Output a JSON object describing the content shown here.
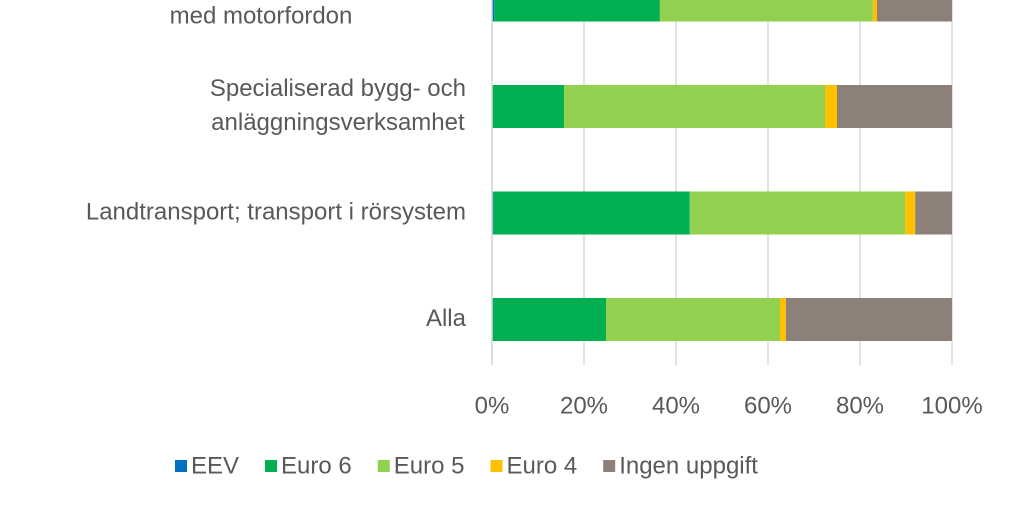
{
  "chart_data": {
    "type": "stacked-barh",
    "categories": [
      [
        "med motorfordon"
      ],
      [
        "Specialiserad bygg- och",
        "anläggningsverksamhet"
      ],
      [
        "Landtransport; transport i rörsystem"
      ],
      [
        "Alla"
      ]
    ],
    "series": [
      {
        "name": "EEV",
        "color": "#0070c0",
        "values": [
          0.5,
          0,
          0.3,
          0.2
        ]
      },
      {
        "name": "Euro 6",
        "color": "#00b050",
        "values": [
          36,
          15.7,
          42.7,
          24.6
        ]
      },
      {
        "name": "Euro 5",
        "color": "#92d050",
        "values": [
          46.3,
          56.7,
          46.8,
          37.8
        ]
      },
      {
        "name": "Euro 4",
        "color": "#ffc000",
        "values": [
          0.9,
          2.6,
          2.2,
          1.3
        ]
      },
      {
        "name": "Ingen uppgift",
        "color": "#8c8078",
        "values": [
          16.3,
          25,
          8,
          36.1
        ]
      }
    ],
    "xlim": [
      0,
      100
    ],
    "xticks": [
      {
        "value": 0,
        "label": "0%"
      },
      {
        "value": 20,
        "label": "20%"
      },
      {
        "value": 40,
        "label": "40%"
      },
      {
        "value": 60,
        "label": "60%"
      },
      {
        "value": 80,
        "label": "80%"
      },
      {
        "value": 100,
        "label": "100%"
      }
    ],
    "grid": true,
    "legend": "bottom"
  }
}
